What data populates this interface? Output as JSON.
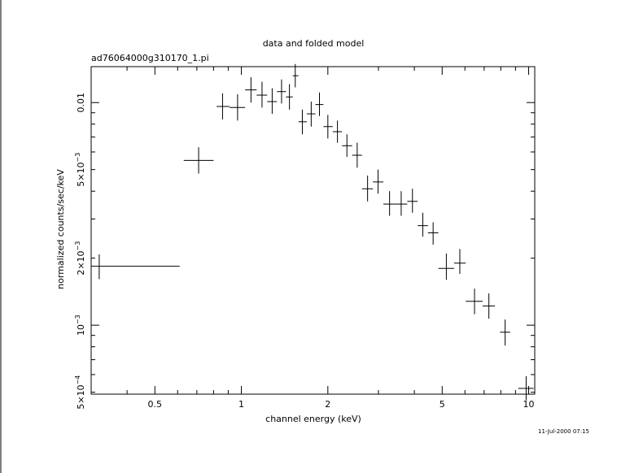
{
  "chart_data": {
    "type": "scatter",
    "title": "data and folded model",
    "subtitle": "ad76064000g310170_1.pi",
    "xlabel": "channel energy (keV)",
    "ylabel": "normalized counts/sec/keV",
    "timestamp": "11-Jul-2000 07:15",
    "x_scale": "log",
    "y_scale": "log",
    "xlim": [
      0.3,
      10.5
    ],
    "ylim": [
      0.00049,
      0.0145
    ],
    "grid": false,
    "x_ticks": [
      {
        "value": 0.5,
        "label": "0.5"
      },
      {
        "value": 1,
        "label": "1"
      },
      {
        "value": 2,
        "label": "2"
      },
      {
        "value": 5,
        "label": "5"
      },
      {
        "value": 10,
        "label": "10"
      }
    ],
    "y_ticks": [
      {
        "value": 0.0005,
        "base": "5×10",
        "exp": "−4"
      },
      {
        "value": 0.001,
        "base": "10",
        "exp": "−3"
      },
      {
        "value": 0.002,
        "base": "2×10",
        "exp": "−3"
      },
      {
        "value": 0.005,
        "base": "5×10",
        "exp": "−3"
      },
      {
        "value": 0.01,
        "base": "0.01",
        "exp": ""
      }
    ],
    "points": [
      {
        "x": 0.32,
        "x_lo": 0.3,
        "x_hi": 0.61,
        "y": 0.00184,
        "y_lo": 0.00161,
        "y_hi": 0.00208
      },
      {
        "x": 0.71,
        "x_lo": 0.63,
        "x_hi": 0.8,
        "y": 0.0055,
        "y_lo": 0.0048,
        "y_hi": 0.0063
      },
      {
        "x": 0.86,
        "x_lo": 0.82,
        "x_hi": 0.91,
        "y": 0.0096,
        "y_lo": 0.0084,
        "y_hi": 0.011
      },
      {
        "x": 0.97,
        "x_lo": 0.91,
        "x_hi": 1.03,
        "y": 0.0095,
        "y_lo": 0.0083,
        "y_hi": 0.0109
      },
      {
        "x": 1.08,
        "x_lo": 1.03,
        "x_hi": 1.13,
        "y": 0.0114,
        "y_lo": 0.01,
        "y_hi": 0.013
      },
      {
        "x": 1.18,
        "x_lo": 1.13,
        "x_hi": 1.23,
        "y": 0.0108,
        "y_lo": 0.0095,
        "y_hi": 0.0124
      },
      {
        "x": 1.28,
        "x_lo": 1.23,
        "x_hi": 1.33,
        "y": 0.0101,
        "y_lo": 0.0089,
        "y_hi": 0.0116
      },
      {
        "x": 1.38,
        "x_lo": 1.33,
        "x_hi": 1.43,
        "y": 0.0112,
        "y_lo": 0.0099,
        "y_hi": 0.0127
      },
      {
        "x": 1.47,
        "x_lo": 1.43,
        "x_hi": 1.51,
        "y": 0.0106,
        "y_lo": 0.0093,
        "y_hi": 0.0121
      },
      {
        "x": 1.54,
        "x_lo": 1.51,
        "x_hi": 1.58,
        "y": 0.0132,
        "y_lo": 0.0117,
        "y_hi": 0.0149
      },
      {
        "x": 1.63,
        "x_lo": 1.58,
        "x_hi": 1.69,
        "y": 0.0082,
        "y_lo": 0.0072,
        "y_hi": 0.0093
      },
      {
        "x": 1.75,
        "x_lo": 1.69,
        "x_hi": 1.81,
        "y": 0.0089,
        "y_lo": 0.0078,
        "y_hi": 0.0101
      },
      {
        "x": 1.87,
        "x_lo": 1.81,
        "x_hi": 1.93,
        "y": 0.0098,
        "y_lo": 0.0087,
        "y_hi": 0.0111
      },
      {
        "x": 2.0,
        "x_lo": 1.93,
        "x_hi": 2.08,
        "y": 0.0078,
        "y_lo": 0.0069,
        "y_hi": 0.0088
      },
      {
        "x": 2.16,
        "x_lo": 2.08,
        "x_hi": 2.24,
        "y": 0.0074,
        "y_lo": 0.0066,
        "y_hi": 0.0083
      },
      {
        "x": 2.33,
        "x_lo": 2.24,
        "x_hi": 2.43,
        "y": 0.0064,
        "y_lo": 0.0057,
        "y_hi": 0.0072
      },
      {
        "x": 2.53,
        "x_lo": 2.43,
        "x_hi": 2.63,
        "y": 0.0058,
        "y_lo": 0.0051,
        "y_hi": 0.0066
      },
      {
        "x": 2.75,
        "x_lo": 2.63,
        "x_hi": 2.87,
        "y": 0.0041,
        "y_lo": 0.0036,
        "y_hi": 0.0047
      },
      {
        "x": 2.99,
        "x_lo": 2.87,
        "x_hi": 3.12,
        "y": 0.0044,
        "y_lo": 0.0039,
        "y_hi": 0.005
      },
      {
        "x": 3.28,
        "x_lo": 3.12,
        "x_hi": 3.44,
        "y": 0.0035,
        "y_lo": 0.0031,
        "y_hi": 0.004
      },
      {
        "x": 3.6,
        "x_lo": 3.44,
        "x_hi": 3.78,
        "y": 0.0035,
        "y_lo": 0.0031,
        "y_hi": 0.004
      },
      {
        "x": 3.94,
        "x_lo": 3.78,
        "x_hi": 4.11,
        "y": 0.0036,
        "y_lo": 0.0032,
        "y_hi": 0.0041
      },
      {
        "x": 4.28,
        "x_lo": 4.11,
        "x_hi": 4.46,
        "y": 0.0028,
        "y_lo": 0.0025,
        "y_hi": 0.0032
      },
      {
        "x": 4.65,
        "x_lo": 4.46,
        "x_hi": 4.85,
        "y": 0.0026,
        "y_lo": 0.0023,
        "y_hi": 0.0029
      },
      {
        "x": 5.17,
        "x_lo": 4.85,
        "x_hi": 5.5,
        "y": 0.0018,
        "y_lo": 0.0016,
        "y_hi": 0.0021
      },
      {
        "x": 5.76,
        "x_lo": 5.5,
        "x_hi": 6.04,
        "y": 0.0019,
        "y_lo": 0.0017,
        "y_hi": 0.0022
      },
      {
        "x": 6.48,
        "x_lo": 6.04,
        "x_hi": 6.92,
        "y": 0.00128,
        "y_lo": 0.00112,
        "y_hi": 0.00146
      },
      {
        "x": 7.27,
        "x_lo": 6.92,
        "x_hi": 7.63,
        "y": 0.00122,
        "y_lo": 0.00107,
        "y_hi": 0.00139
      },
      {
        "x": 8.28,
        "x_lo": 7.95,
        "x_hi": 8.62,
        "y": 0.00093,
        "y_lo": 0.00081,
        "y_hi": 0.00106
      },
      {
        "x": 9.8,
        "x_lo": 9.2,
        "x_hi": 10.4,
        "y": 0.00052,
        "y_lo": 0.00046,
        "y_hi": 0.00059
      }
    ]
  }
}
